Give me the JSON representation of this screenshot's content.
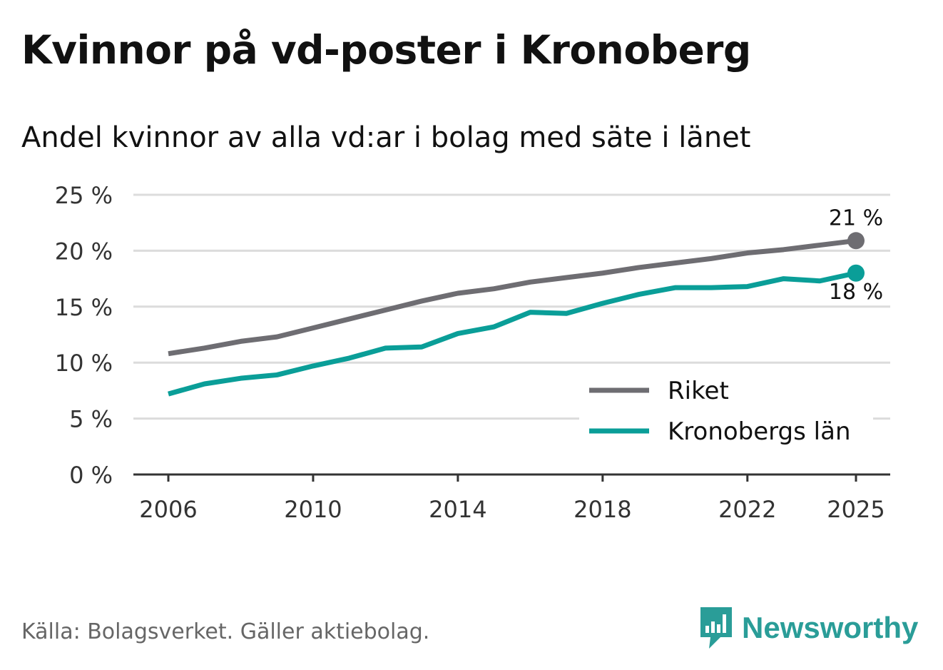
{
  "title": "Kvinnor på vd-poster i Kronoberg",
  "subtitle": "Andel kvinnor av alla vd:ar i bolag med säte i länet",
  "source": "Källa: Bolagsverket. Gäller aktiebolag.",
  "brand": {
    "name": "Newsworthy",
    "color": "#2a9d98",
    "icon": "newsworthy-logo-icon"
  },
  "chart_data": {
    "type": "line",
    "title": "Kvinnor på vd-poster i Kronoberg",
    "subtitle": "Andel kvinnor av alla vd:ar i bolag med säte i länet",
    "xlabel": "",
    "ylabel": "",
    "x": [
      2006,
      2007,
      2008,
      2009,
      2010,
      2011,
      2012,
      2013,
      2014,
      2015,
      2016,
      2017,
      2018,
      2019,
      2020,
      2021,
      2022,
      2023,
      2024,
      2025
    ],
    "xlim": [
      2006,
      2025
    ],
    "ylim": [
      0,
      25
    ],
    "x_ticks": [
      2006,
      2010,
      2014,
      2018,
      2022,
      2025
    ],
    "x_tick_labels": [
      "2006",
      "2010",
      "2014",
      "2018",
      "2022",
      "2025"
    ],
    "y_ticks": [
      0,
      5,
      10,
      15,
      20,
      25
    ],
    "y_tick_labels": [
      "0 %",
      "5 %",
      "10 %",
      "15 %",
      "20 %",
      "25 %"
    ],
    "grid": true,
    "legend_position": "bottom-right",
    "series": [
      {
        "name": "Riket",
        "color": "#6e6d72",
        "end_label": "21 %",
        "values": [
          10.8,
          11.3,
          11.9,
          12.3,
          13.1,
          13.9,
          14.7,
          15.5,
          16.2,
          16.6,
          17.2,
          17.6,
          18.0,
          18.5,
          18.9,
          19.3,
          19.8,
          20.1,
          20.5,
          20.9
        ]
      },
      {
        "name": "Kronobergs län",
        "color": "#0a9e98",
        "end_label": "18 %",
        "values": [
          7.2,
          8.1,
          8.6,
          8.9,
          9.7,
          10.4,
          11.3,
          11.4,
          12.6,
          13.2,
          14.5,
          14.4,
          15.3,
          16.1,
          16.7,
          16.7,
          16.8,
          17.5,
          17.3,
          18.0
        ]
      }
    ]
  }
}
